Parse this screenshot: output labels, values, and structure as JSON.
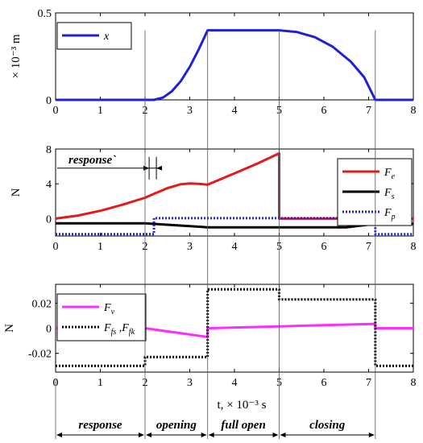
{
  "chart_data": [
    {
      "type": "line",
      "ylabel": "× 10⁻³ m",
      "xlim": [
        0,
        8
      ],
      "ylim": [
        0,
        0.5
      ],
      "xticks": [
        0,
        1,
        2,
        3,
        4,
        5,
        6,
        7,
        8
      ],
      "yticks": [
        0,
        0.5
      ],
      "ytick_labels": [
        "0",
        "0.5"
      ],
      "legend": "top-left",
      "series": [
        {
          "name": "x",
          "color": "#1f1fdc",
          "style": "solid",
          "x": [
            0,
            2.2,
            2.4,
            2.6,
            2.8,
            3.0,
            3.2,
            3.4,
            5.0,
            5.4,
            5.8,
            6.2,
            6.6,
            6.9,
            7.15,
            8.0
          ],
          "y": [
            0,
            0,
            0.013,
            0.049,
            0.108,
            0.19,
            0.29,
            0.4,
            0.4,
            0.39,
            0.36,
            0.305,
            0.22,
            0.13,
            0,
            0
          ]
        }
      ]
    },
    {
      "type": "line",
      "ylabel": "N",
      "xlim": [
        0,
        8
      ],
      "ylim": [
        -2,
        8
      ],
      "xticks": [
        0,
        1,
        2,
        3,
        4,
        5,
        6,
        7,
        8
      ],
      "yticks": [
        0,
        4,
        8
      ],
      "legend": "top-right",
      "annotations": [
        {
          "text": "response`",
          "x_from": 0,
          "x_to": 2.2,
          "y": 5.8
        }
      ],
      "series": [
        {
          "name": "F",
          "sub": "e",
          "color": "#e31a1a",
          "style": "solid",
          "x": [
            0,
            0.5,
            1.0,
            1.5,
            2.0,
            2.2,
            2.5,
            2.8,
            3.0,
            3.2,
            3.4,
            4.0,
            4.5,
            5.0,
            5.0,
            8.0
          ],
          "y": [
            0,
            0.35,
            0.9,
            1.6,
            2.4,
            2.85,
            3.5,
            3.95,
            4.05,
            4.0,
            3.9,
            5.2,
            6.3,
            7.5,
            0,
            0
          ]
        },
        {
          "name": "F",
          "sub": "s",
          "color": "#000000",
          "style": "solid",
          "x": [
            0,
            2.0,
            3.4,
            5.0,
            6.5,
            7.15,
            8.0
          ],
          "y": [
            -0.55,
            -0.55,
            -1.0,
            -1.0,
            -1.0,
            -0.6,
            -0.6
          ]
        },
        {
          "name": "F",
          "sub": "p",
          "color": "#1f1fdc",
          "style": "dotted",
          "x": [
            0,
            2.2,
            2.2,
            7.15,
            7.15,
            8.0
          ],
          "y": [
            -1.8,
            -1.8,
            0.05,
            0.05,
            -1.8,
            -1.8
          ]
        }
      ]
    },
    {
      "type": "line",
      "ylabel": "N",
      "xlabel": "t, × 10⁻³ s",
      "xlim": [
        0,
        8
      ],
      "ylim": [
        -0.035,
        0.035
      ],
      "xticks": [
        0,
        1,
        2,
        3,
        4,
        5,
        6,
        7,
        8
      ],
      "yticks": [
        -0.02,
        0,
        0.02
      ],
      "ytick_labels": [
        "-0.02",
        "0",
        "0.02"
      ],
      "legend": "top-left",
      "series": [
        {
          "name": "F",
          "sub": "v",
          "color": "#ff2bff",
          "style": "solid",
          "x": [
            0,
            2.0,
            3.4,
            3.4,
            5.0,
            7.15,
            7.15,
            8.0
          ],
          "y": [
            0,
            0,
            -0.007,
            0,
            0.0015,
            0.0035,
            0,
            0
          ]
        },
        {
          "name": "F",
          "sub": "fs",
          "name2": "F",
          "sub2": "fk",
          "color": "#000000",
          "style": "dotted",
          "x": [
            0,
            2.0,
            2.0,
            3.4,
            3.4,
            5.0,
            5.0,
            7.15,
            7.15,
            8.0
          ],
          "y": [
            -0.03,
            -0.03,
            -0.023,
            -0.023,
            0.031,
            0.031,
            0.023,
            0.023,
            -0.03,
            -0.03
          ]
        }
      ]
    }
  ],
  "phases": [
    {
      "label": "response",
      "from": 0,
      "to": 2.0
    },
    {
      "label": "opening",
      "from": 2.0,
      "to": 3.4
    },
    {
      "label": "full open",
      "from": 3.4,
      "to": 5.0
    },
    {
      "label": "closing",
      "from": 5.0,
      "to": 7.15
    }
  ],
  "vlines": [
    2.0,
    3.4,
    5.0,
    7.15
  ]
}
